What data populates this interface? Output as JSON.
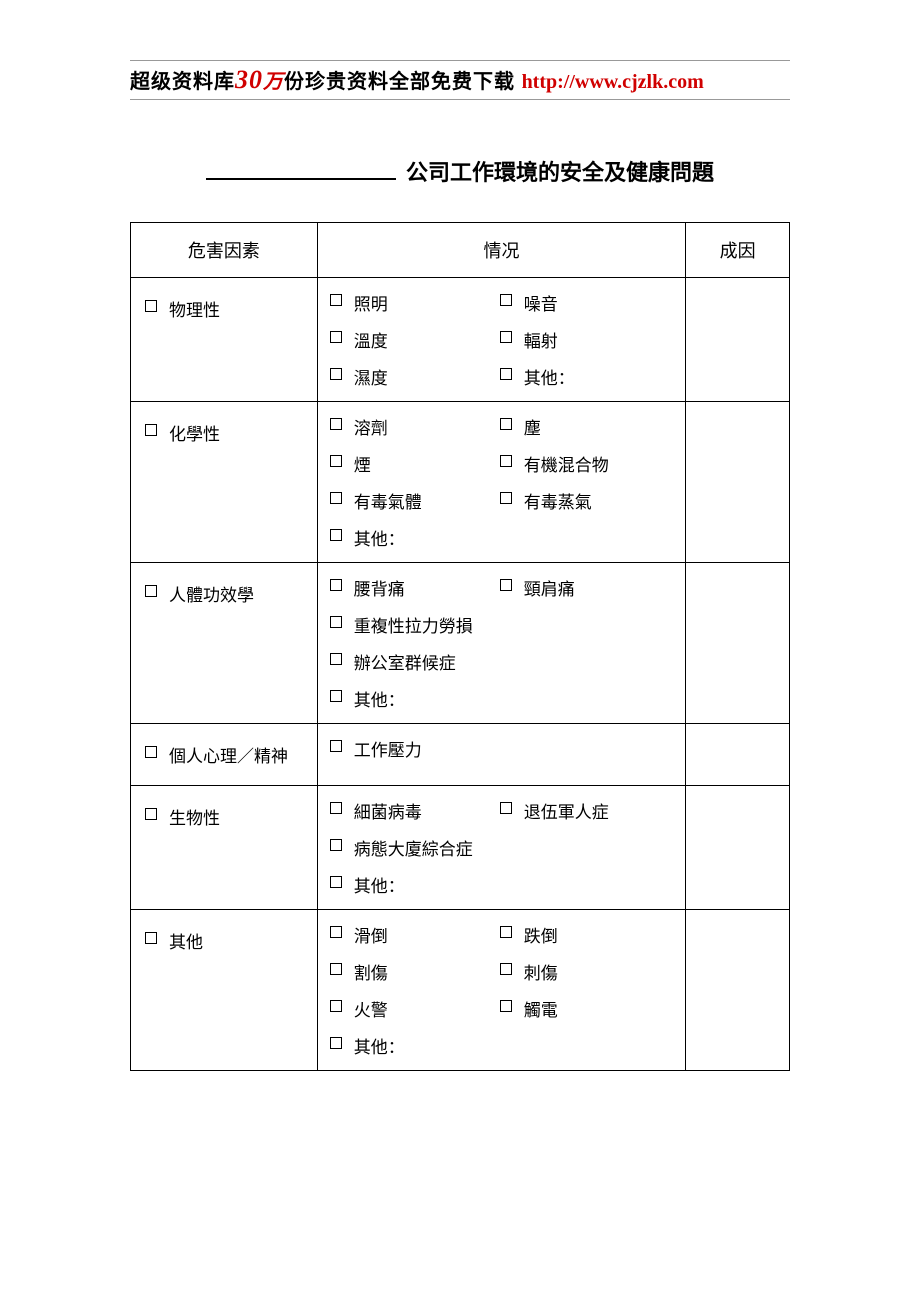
{
  "banner": {
    "part1": "超级资料库",
    "part2": "30",
    "part3": "万",
    "part4": "份珍贵资料全部免费下载",
    "url": "http://www.cjzlk.com"
  },
  "title_suffix": "公司工作環境的安全及健康問題",
  "headers": {
    "hazard": "危害因素",
    "condition": "情况",
    "cause": "成因"
  },
  "rows": [
    {
      "category": "物理性",
      "items": [
        [
          "照明",
          "噪音"
        ],
        [
          "溫度",
          "輻射"
        ],
        [
          "濕度",
          "其他："
        ]
      ]
    },
    {
      "category": "化學性",
      "items": [
        [
          "溶劑",
          "塵"
        ],
        [
          "煙",
          "有機混合物"
        ],
        [
          "有毒氣體",
          "有毒蒸氣"
        ],
        [
          "其他："
        ]
      ]
    },
    {
      "category": "人體功效學",
      "items": [
        [
          "腰背痛",
          "頸肩痛"
        ],
        [
          "重複性拉力勞損"
        ],
        [
          "辦公室群候症"
        ],
        [
          "其他："
        ]
      ]
    },
    {
      "category": "個人心理／精神",
      "items": [
        [
          "工作壓力"
        ]
      ]
    },
    {
      "category": "生物性",
      "items": [
        [
          "細菌病毒",
          "退伍軍人症"
        ],
        [
          "病態大廈綜合症"
        ],
        [
          "其他："
        ]
      ]
    },
    {
      "category": "其他",
      "items": [
        [
          "滑倒",
          "跌倒"
        ],
        [
          "割傷",
          "刺傷"
        ],
        [
          "火警",
          "觸電"
        ],
        [
          "其他："
        ]
      ]
    }
  ]
}
